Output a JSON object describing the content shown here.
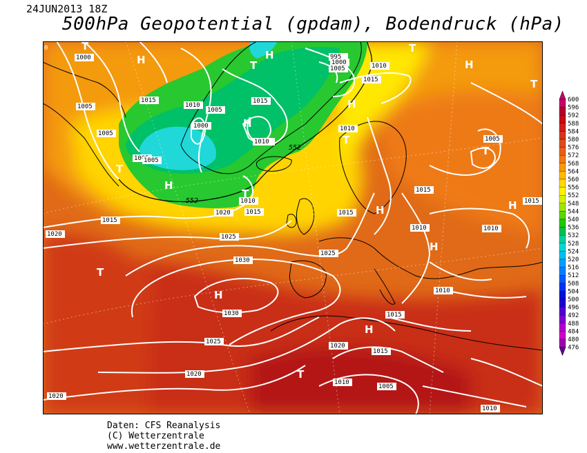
{
  "header": {
    "date": "24JUN2013 18Z",
    "title": "500hPa Geopotential (gpdam), Bodendruck (hPa)"
  },
  "credits": [
    "Daten: CFS Reanalysis",
    "(C) Wetterzentrale",
    "www.wetterzentrale.de"
  ],
  "legend": {
    "levels": [
      "600",
      "596",
      "592",
      "588",
      "584",
      "580",
      "576",
      "572",
      "568",
      "564",
      "560",
      "556",
      "552",
      "548",
      "544",
      "540",
      "536",
      "532",
      "528",
      "524",
      "520",
      "516",
      "512",
      "508",
      "504",
      "500",
      "496",
      "492",
      "488",
      "484",
      "480",
      "476"
    ],
    "colors": [
      "#c8006e",
      "#b2002e",
      "#c80a14",
      "#d01e16",
      "#d8361a",
      "#e04a1c",
      "#e85e18",
      "#f07a10",
      "#f79a08",
      "#ffba00",
      "#ffd900",
      "#fff200",
      "#d8f000",
      "#9ee600",
      "#5ad800",
      "#20c800",
      "#00c050",
      "#00d0a0",
      "#00d8d8",
      "#00c0f0",
      "#00a0ff",
      "#0080ff",
      "#0058ff",
      "#0030f0",
      "#0010d8",
      "#2000d0",
      "#5000d0",
      "#8000d0",
      "#b000d0",
      "#d000c8",
      "#a000b0",
      "#600090"
    ]
  },
  "map": {
    "pressure_labels": [
      "1000",
      "1005",
      "1005",
      "1005",
      "1005",
      "1010",
      "1015",
      "1010",
      "1005",
      "1000",
      "1015",
      "1010",
      "995",
      "1000",
      "1005",
      "1010",
      "1015",
      "1010",
      "1005",
      "1015",
      "1010",
      "1015",
      "1015",
      "1020",
      "1010",
      "1015",
      "1020",
      "1015",
      "1025",
      "1025",
      "1030",
      "1030",
      "1025",
      "1020",
      "1015",
      "1010",
      "1010",
      "1005",
      "1015",
      "1020",
      "1020",
      "1010",
      "1010"
    ],
    "height_labels": [
      "552",
      "552"
    ],
    "highs": [
      "H",
      "H",
      "H",
      "H",
      "H",
      "H",
      "H",
      "H",
      "H",
      "H",
      "H"
    ],
    "lows": [
      "T",
      "T",
      "T",
      "T",
      "T",
      "T",
      "T",
      "T",
      "T",
      "T"
    ],
    "corner_label": "0"
  }
}
